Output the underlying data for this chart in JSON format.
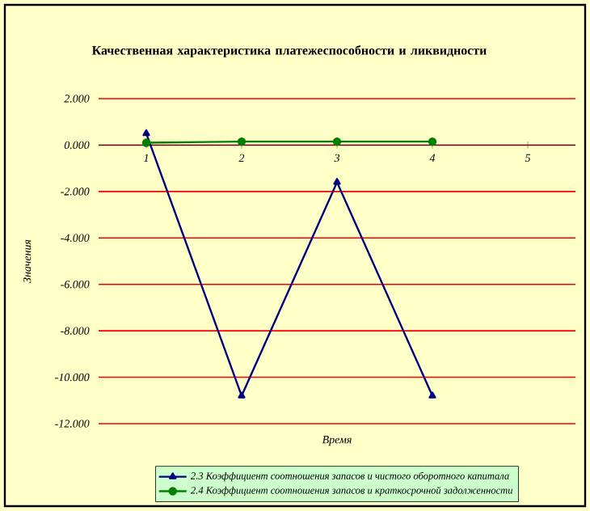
{
  "chart_data": {
    "type": "line",
    "title": "Качественная характеристика платежеспособности и ликвидности",
    "xlabel": "Время",
    "ylabel": "Значения",
    "categories": [
      "1",
      "2",
      "3",
      "4",
      "5"
    ],
    "series": [
      {
        "name": "2.3 Коэффициент соотношения запасов и чистого оборотного капитала",
        "color": "#000080",
        "marker": "triangle",
        "values": [
          0.5,
          -10.8,
          -1.6,
          -10.8,
          null
        ]
      },
      {
        "name": "2.4  Коэффициент соотношения запасов и краткосрочной задолженности",
        "color": "#008000",
        "marker": "circle",
        "values": [
          0.1,
          0.15,
          0.15,
          0.15,
          null
        ]
      }
    ],
    "ylim": [
      -12,
      2
    ],
    "yticks": [
      {
        "value": 2,
        "label": "2.000"
      },
      {
        "value": 0,
        "label": "0.000"
      },
      {
        "value": -2,
        "label": "-2.000"
      },
      {
        "value": -4,
        "label": "-4.000"
      },
      {
        "value": -6,
        "label": "-6.000"
      },
      {
        "value": -8,
        "label": "-8.000"
      },
      {
        "value": -10,
        "label": "-10.000"
      },
      {
        "value": -12,
        "label": "-12.000"
      }
    ],
    "grid": "y",
    "legend": "bottom",
    "line_style": "solid"
  }
}
